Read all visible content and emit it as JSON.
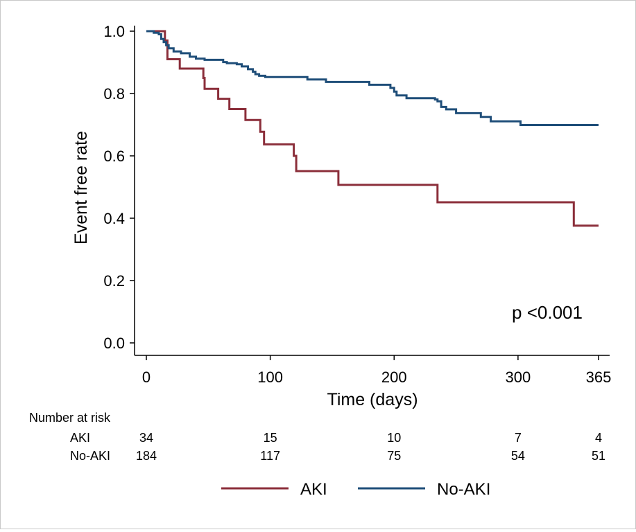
{
  "chart_data": {
    "type": "line",
    "title": "",
    "xlabel": "Time (days)",
    "ylabel": "Event free rate",
    "xlim": [
      0,
      365
    ],
    "ylim": [
      0,
      1
    ],
    "x_ticks": [
      0,
      100,
      200,
      300,
      365
    ],
    "x_tick_labels": [
      "0",
      "100",
      "200",
      "300",
      "365"
    ],
    "y_ticks": [
      0,
      0.2,
      0.4,
      0.6,
      0.8,
      1.0
    ],
    "y_tick_labels": [
      "0.0",
      "0.2",
      "0.4",
      "0.6",
      "0.8",
      "1.0"
    ],
    "grid": false,
    "annotation": "p <0.001",
    "legend_position": "bottom",
    "series": [
      {
        "name": "AKI",
        "color": "#8b2e3a",
        "points": [
          [
            0,
            1.0
          ],
          [
            15,
            1.0
          ],
          [
            15,
            0.97
          ],
          [
            17,
            0.97
          ],
          [
            17,
            0.91
          ],
          [
            27,
            0.91
          ],
          [
            27,
            0.88
          ],
          [
            46,
            0.88
          ],
          [
            46,
            0.85
          ],
          [
            47,
            0.85
          ],
          [
            47,
            0.815
          ],
          [
            58,
            0.815
          ],
          [
            58,
            0.783
          ],
          [
            67,
            0.783
          ],
          [
            67,
            0.75
          ],
          [
            80,
            0.75
          ],
          [
            80,
            0.715
          ],
          [
            92,
            0.715
          ],
          [
            92,
            0.677
          ],
          [
            95,
            0.677
          ],
          [
            95,
            0.637
          ],
          [
            119,
            0.637
          ],
          [
            119,
            0.6
          ],
          [
            121,
            0.6
          ],
          [
            121,
            0.551
          ],
          [
            155,
            0.551
          ],
          [
            155,
            0.507
          ],
          [
            235,
            0.507
          ],
          [
            235,
            0.451
          ],
          [
            345,
            0.451
          ],
          [
            345,
            0.376
          ],
          [
            365,
            0.376
          ]
        ]
      },
      {
        "name": "No-AKI",
        "color": "#1f4e79",
        "points": [
          [
            0,
            1.0
          ],
          [
            6,
            1.0
          ],
          [
            6,
            0.995
          ],
          [
            10,
            0.995
          ],
          [
            10,
            0.99
          ],
          [
            12,
            0.99
          ],
          [
            12,
            0.975
          ],
          [
            14,
            0.975
          ],
          [
            14,
            0.965
          ],
          [
            16,
            0.965
          ],
          [
            16,
            0.955
          ],
          [
            18,
            0.955
          ],
          [
            18,
            0.945
          ],
          [
            22,
            0.945
          ],
          [
            22,
            0.935
          ],
          [
            28,
            0.935
          ],
          [
            28,
            0.929
          ],
          [
            35,
            0.929
          ],
          [
            35,
            0.918
          ],
          [
            40,
            0.918
          ],
          [
            40,
            0.912
          ],
          [
            47,
            0.912
          ],
          [
            47,
            0.908
          ],
          [
            62,
            0.908
          ],
          [
            62,
            0.901
          ],
          [
            65,
            0.901
          ],
          [
            65,
            0.897
          ],
          [
            73,
            0.897
          ],
          [
            73,
            0.894
          ],
          [
            77,
            0.894
          ],
          [
            77,
            0.887
          ],
          [
            82,
            0.887
          ],
          [
            82,
            0.878
          ],
          [
            86,
            0.878
          ],
          [
            86,
            0.87
          ],
          [
            88,
            0.87
          ],
          [
            88,
            0.862
          ],
          [
            91,
            0.862
          ],
          [
            91,
            0.857
          ],
          [
            96,
            0.857
          ],
          [
            96,
            0.853
          ],
          [
            110,
            0.853
          ],
          [
            110,
            0.853
          ],
          [
            130,
            0.853
          ],
          [
            130,
            0.845
          ],
          [
            145,
            0.845
          ],
          [
            145,
            0.837
          ],
          [
            180,
            0.837
          ],
          [
            180,
            0.828
          ],
          [
            197,
            0.828
          ],
          [
            197,
            0.818
          ],
          [
            200,
            0.818
          ],
          [
            200,
            0.806
          ],
          [
            202,
            0.806
          ],
          [
            202,
            0.794
          ],
          [
            210,
            0.794
          ],
          [
            210,
            0.785
          ],
          [
            233,
            0.785
          ],
          [
            233,
            0.781
          ],
          [
            235,
            0.781
          ],
          [
            235,
            0.775
          ],
          [
            238,
            0.775
          ],
          [
            238,
            0.757
          ],
          [
            242,
            0.757
          ],
          [
            242,
            0.749
          ],
          [
            250,
            0.749
          ],
          [
            250,
            0.737
          ],
          [
            270,
            0.737
          ],
          [
            270,
            0.725
          ],
          [
            278,
            0.725
          ],
          [
            278,
            0.711
          ],
          [
            302,
            0.711
          ],
          [
            302,
            0.699
          ],
          [
            365,
            0.699
          ]
        ]
      }
    ],
    "risk_table": {
      "title": "Number at risk",
      "times": [
        0,
        100,
        200,
        300,
        365
      ],
      "rows": [
        {
          "label": "AKI",
          "values": [
            "34",
            "15",
            "10",
            "7",
            "4"
          ]
        },
        {
          "label": "No-AKI",
          "values": [
            "184",
            "117",
            "75",
            "54",
            "51"
          ]
        }
      ]
    }
  }
}
